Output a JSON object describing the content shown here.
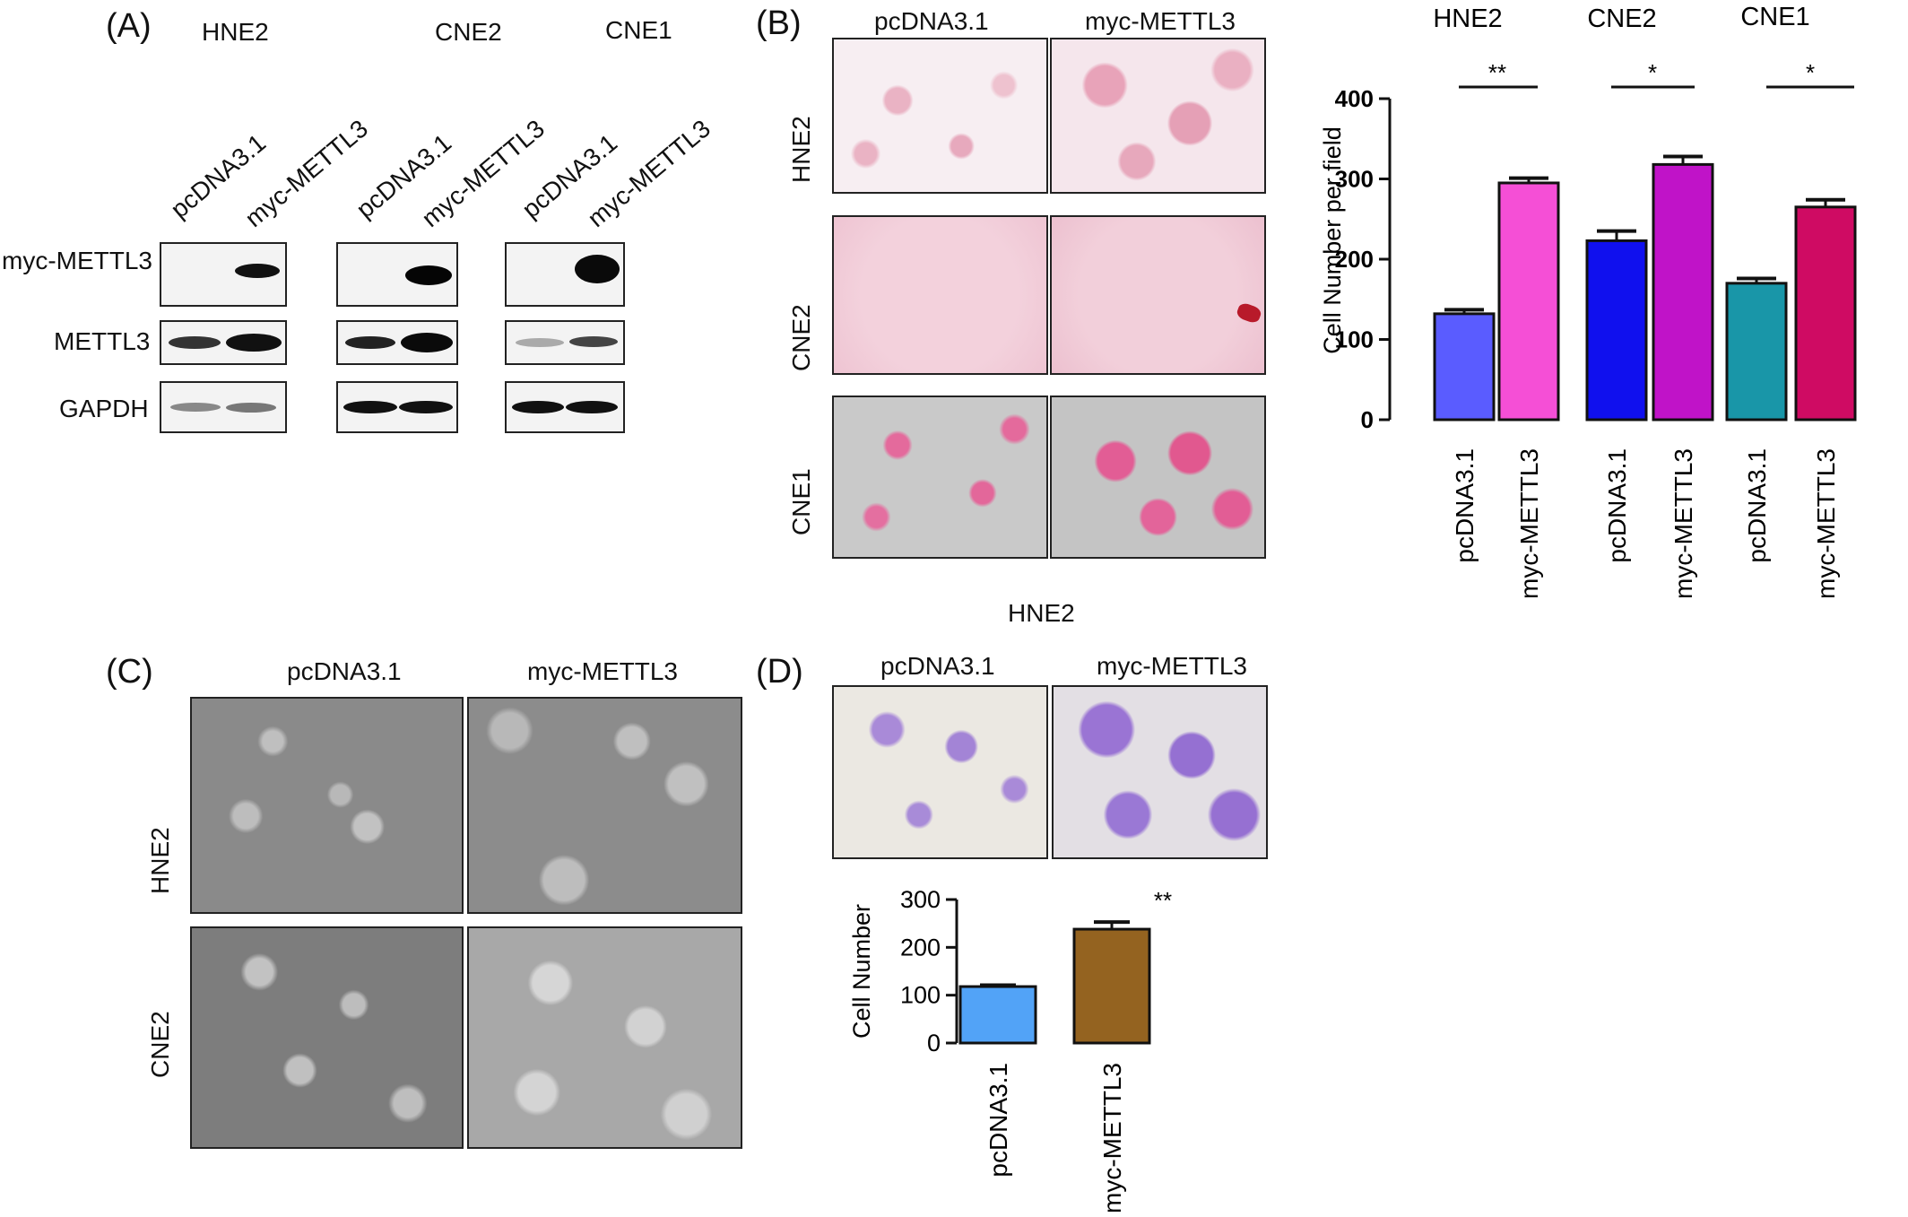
{
  "panel_a": {
    "letter": "(A)",
    "cell_lines": [
      "HNE2",
      "CNE2",
      "CNE1"
    ],
    "lanes": [
      "pcDNA3.1",
      "myc-METTL3"
    ],
    "rows": [
      "myc-METTL3",
      "METTL3",
      "GAPDH"
    ]
  },
  "panel_b": {
    "letter": "(B)",
    "cols": [
      "pcDNA3.1",
      "myc-METTL3"
    ],
    "rows": [
      "HNE2",
      "CNE2",
      "CNE1"
    ],
    "chart_group_labels": [
      "HNE2",
      "CNE2",
      "CNE1"
    ],
    "significance": [
      "**",
      "*",
      "*"
    ]
  },
  "panel_c": {
    "letter": "(C)",
    "cols": [
      "pcDNA3.1",
      "myc-METTL3"
    ],
    "rows": [
      "HNE2",
      "CNE2"
    ]
  },
  "panel_d": {
    "letter": "(D)",
    "title": "HNE2",
    "cols": [
      "pcDNA3.1",
      "myc-METTL3"
    ],
    "significance": "**"
  },
  "chart_data": [
    {
      "type": "bar",
      "categories": [
        "pcDNA3.1",
        "myc-METTL3",
        "pcDNA3.1",
        "myc-METTL3",
        "pcDNA3.1",
        "myc-METTL3"
      ],
      "values": [
        132,
        295,
        223,
        318,
        170,
        265
      ],
      "errors": [
        5,
        6,
        12,
        10,
        6,
        9
      ],
      "colors": [
        "#5a5cff",
        "#f54fd6",
        "#1010ee",
        "#c013c8",
        "#1996a8",
        "#cf0b63"
      ],
      "ylabel": "Cell Number per field",
      "ylim": [
        0,
        400
      ],
      "yticks": [
        0,
        100,
        200,
        300,
        400
      ],
      "grid": false
    },
    {
      "type": "bar",
      "categories": [
        "pcDNA3.1",
        "myc-METTL3"
      ],
      "values": [
        118,
        238
      ],
      "errors": [
        3,
        15
      ],
      "colors": [
        "#52a3f7",
        "#946320"
      ],
      "ylabel": "Cell Number",
      "ylim": [
        0,
        300
      ],
      "yticks": [
        0,
        100,
        200,
        300
      ],
      "grid": false
    }
  ]
}
